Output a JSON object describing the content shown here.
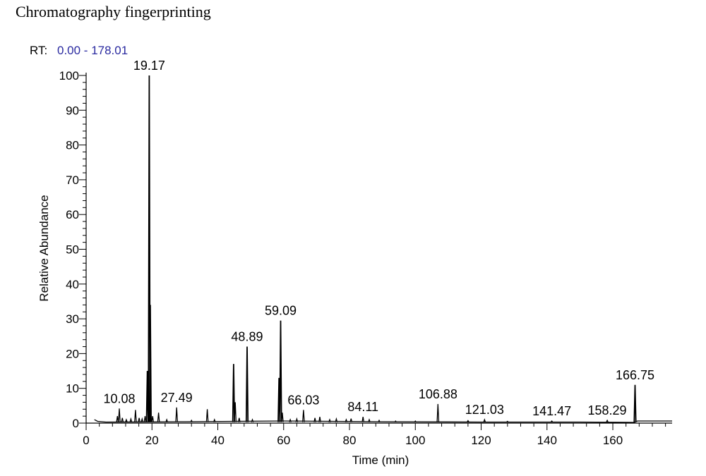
{
  "caption": "Chromatography fingerprinting",
  "rt_label": "RT:",
  "rt_range": "0.00 - 178.01",
  "colors": {
    "line": "#000000",
    "rt_range": "#2a2aa0",
    "text": "#000000"
  },
  "chart_data": {
    "type": "line",
    "title": "Chromatography fingerprinting",
    "xlabel": "Time (min)",
    "ylabel": "Relative Abundance",
    "xlim": [
      0,
      178.01
    ],
    "ylim": [
      0,
      100
    ],
    "xticks": [
      0,
      20,
      40,
      60,
      80,
      100,
      120,
      140,
      160
    ],
    "yticks": [
      0,
      10,
      20,
      30,
      40,
      50,
      60,
      70,
      80,
      90,
      100
    ],
    "baseline": [
      [
        2.5,
        1.0
      ],
      [
        3.5,
        0.5
      ],
      [
        6,
        0.3
      ],
      [
        30,
        0.4
      ],
      [
        60,
        0.6
      ],
      [
        90,
        0.4
      ],
      [
        120,
        0.3
      ],
      [
        150,
        0.3
      ],
      [
        166.5,
        0.2
      ],
      [
        167.5,
        0.6
      ],
      [
        178.01,
        0.6
      ]
    ],
    "peaks": [
      {
        "rt": 9.5,
        "height": 2.0
      },
      {
        "rt": 10.08,
        "height": 4.2
      },
      {
        "rt": 11.0,
        "height": 1.5
      },
      {
        "rt": 12.2,
        "height": 1.0
      },
      {
        "rt": 13.6,
        "height": 1.2
      },
      {
        "rt": 15.0,
        "height": 3.8
      },
      {
        "rt": 16.1,
        "height": 1.5
      },
      {
        "rt": 17.0,
        "height": 1.2
      },
      {
        "rt": 17.9,
        "height": 2.0
      },
      {
        "rt": 18.6,
        "height": 15.0
      },
      {
        "rt": 19.17,
        "height": 100.0
      },
      {
        "rt": 19.5,
        "height": 34.0
      },
      {
        "rt": 20.2,
        "height": 2.0
      },
      {
        "rt": 22.0,
        "height": 3.0
      },
      {
        "rt": 24.5,
        "height": 1.0
      },
      {
        "rt": 27.49,
        "height": 4.5
      },
      {
        "rt": 32.0,
        "height": 0.8
      },
      {
        "rt": 36.8,
        "height": 4.0
      },
      {
        "rt": 39.0,
        "height": 1.0
      },
      {
        "rt": 44.8,
        "height": 17.0
      },
      {
        "rt": 45.3,
        "height": 6.0
      },
      {
        "rt": 46.5,
        "height": 1.5
      },
      {
        "rt": 48.89,
        "height": 22.0
      },
      {
        "rt": 50.5,
        "height": 1.0
      },
      {
        "rt": 58.6,
        "height": 13.0
      },
      {
        "rt": 59.09,
        "height": 29.5
      },
      {
        "rt": 59.6,
        "height": 3.0
      },
      {
        "rt": 62.0,
        "height": 1.0
      },
      {
        "rt": 64.0,
        "height": 1.2
      },
      {
        "rt": 66.03,
        "height": 3.8
      },
      {
        "rt": 69.5,
        "height": 1.5
      },
      {
        "rt": 71.0,
        "height": 1.8
      },
      {
        "rt": 74.0,
        "height": 1.0
      },
      {
        "rt": 76.0,
        "height": 1.2
      },
      {
        "rt": 79.0,
        "height": 1.0
      },
      {
        "rt": 80.5,
        "height": 1.3
      },
      {
        "rt": 84.11,
        "height": 1.8
      },
      {
        "rt": 86.0,
        "height": 1.0
      },
      {
        "rt": 89.0,
        "height": 0.8
      },
      {
        "rt": 94.0,
        "height": 0.6
      },
      {
        "rt": 100.0,
        "height": 0.6
      },
      {
        "rt": 106.88,
        "height": 5.5
      },
      {
        "rt": 116.0,
        "height": 0.7
      },
      {
        "rt": 121.03,
        "height": 1.0
      },
      {
        "rt": 128.0,
        "height": 0.5
      },
      {
        "rt": 141.47,
        "height": 0.6
      },
      {
        "rt": 158.29,
        "height": 0.8
      },
      {
        "rt": 166.75,
        "height": 11.0
      }
    ],
    "peak_labels": [
      {
        "text": "10.08",
        "rt": 10.08,
        "y": 4.2
      },
      {
        "text": "19.17",
        "rt": 19.17,
        "y": 100.0
      },
      {
        "text": "27.49",
        "rt": 27.49,
        "y": 4.5
      },
      {
        "text": "48.89",
        "rt": 48.89,
        "y": 22.0
      },
      {
        "text": "59.09",
        "rt": 59.09,
        "y": 29.5
      },
      {
        "text": "66.03",
        "rt": 66.03,
        "y": 3.8
      },
      {
        "text": "84.11",
        "rt": 84.11,
        "y": 1.8
      },
      {
        "text": "106.88",
        "rt": 106.88,
        "y": 5.5
      },
      {
        "text": "121.03",
        "rt": 121.03,
        "y": 1.0
      },
      {
        "text": "141.47",
        "rt": 141.47,
        "y": 0.6
      },
      {
        "text": "158.29",
        "rt": 158.29,
        "y": 0.8
      },
      {
        "text": "166.75",
        "rt": 166.75,
        "y": 11.0
      }
    ]
  }
}
